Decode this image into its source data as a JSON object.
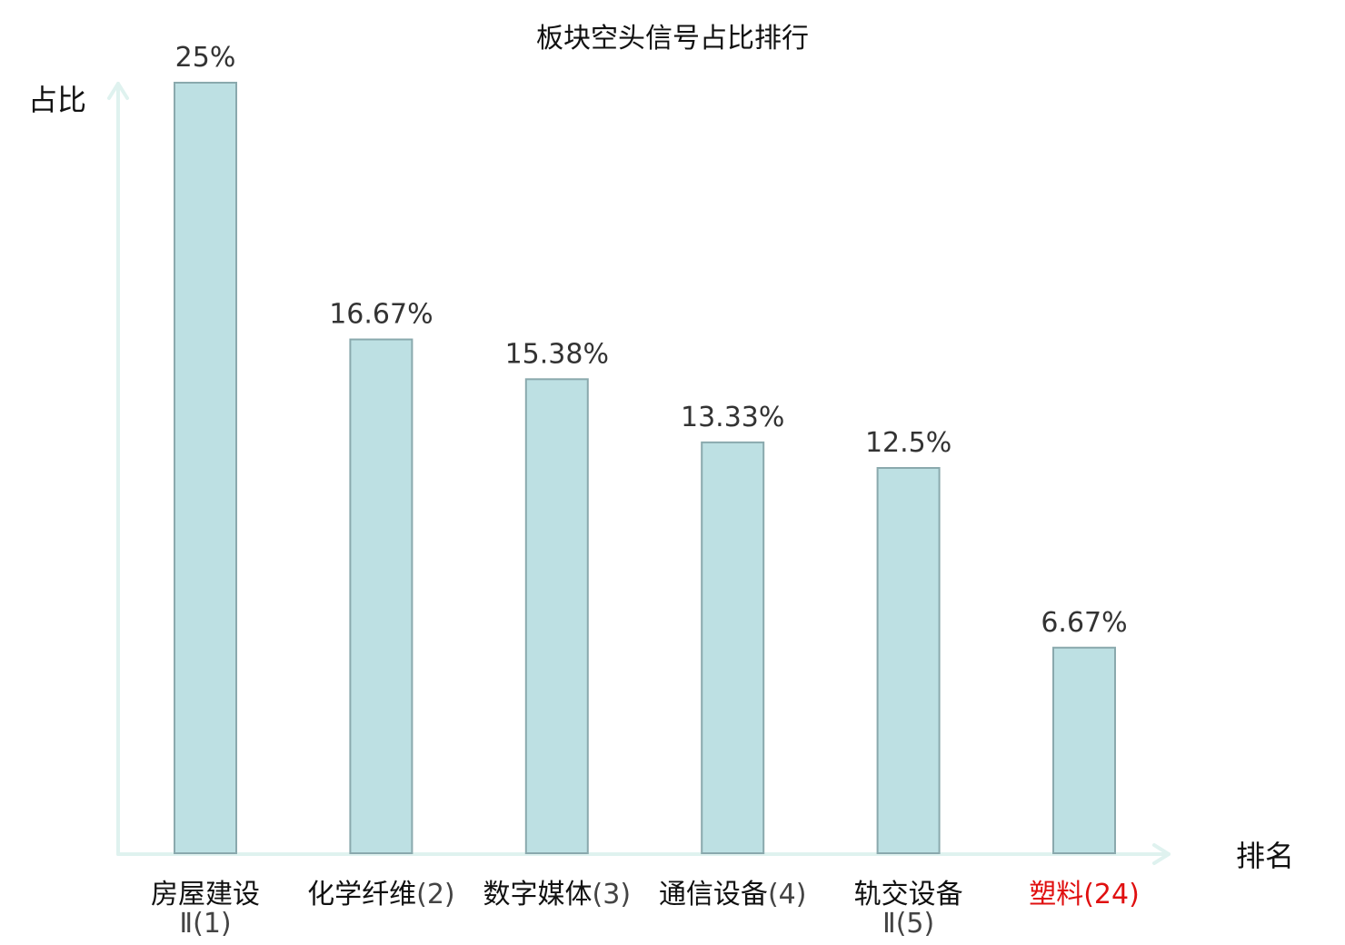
{
  "chart_data": {
    "type": "bar",
    "title": "板块空头信号占比排行",
    "ylabel": "占比",
    "xlabel": "排名",
    "ylim": [
      0,
      25
    ],
    "grid": false,
    "categories": [
      {
        "name": "房屋建设",
        "rank_suffix": "Ⅱ(1)",
        "highlight": false
      },
      {
        "name": "化学纤维",
        "rank_suffix": "(2)",
        "highlight": false
      },
      {
        "name": "数字媒体",
        "rank_suffix": "(3)",
        "highlight": false
      },
      {
        "name": "通信设备",
        "rank_suffix": "(4)",
        "highlight": false
      },
      {
        "name": "轨交设备",
        "rank_suffix": "Ⅱ(5)",
        "highlight": false
      },
      {
        "name": "塑料",
        "rank_suffix": "(24)",
        "highlight": true
      }
    ],
    "values": [
      25,
      16.67,
      15.38,
      13.33,
      12.5,
      6.67
    ],
    "value_labels": [
      "25%",
      "16.67%",
      "15.38%",
      "13.33%",
      "12.5%",
      "6.67%"
    ]
  },
  "colors": {
    "bar_fill": "#bde0e3",
    "bar_stroke": "#8aa9ad",
    "axis": "#dff2ef",
    "highlight": "#e01010"
  }
}
